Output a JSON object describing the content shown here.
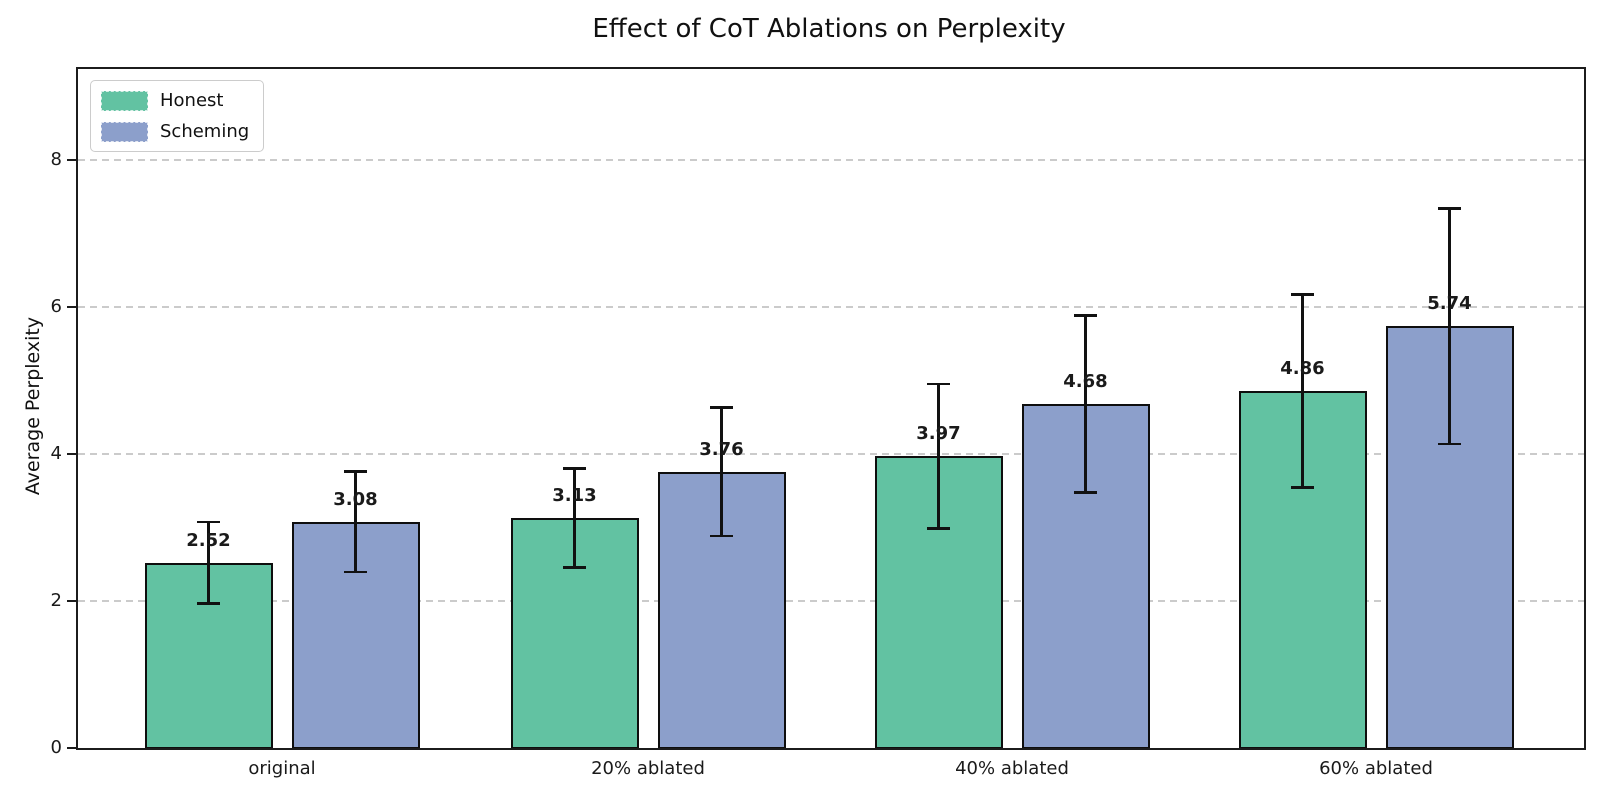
{
  "chart_data": {
    "type": "bar",
    "title": "Effect of CoT Ablations on Perplexity",
    "xlabel": "",
    "ylabel": "Average Perplexity",
    "categories": [
      "original",
      "20% ablated",
      "40% ablated",
      "60% ablated"
    ],
    "series": [
      {
        "name": "Honest",
        "color": "#62C2A2",
        "values": [
          2.52,
          3.13,
          3.97,
          4.86
        ],
        "errors": [
          0.57,
          0.69,
          1.0,
          1.33
        ],
        "labels": [
          "2.52",
          "3.13",
          "3.97",
          "4.86"
        ]
      },
      {
        "name": "Scheming",
        "color": "#8C9FCB",
        "values": [
          3.08,
          3.76,
          4.68,
          5.74
        ],
        "errors": [
          0.7,
          0.89,
          1.22,
          1.62
        ],
        "labels": [
          "3.08",
          "3.76",
          "4.68",
          "5.74"
        ]
      }
    ],
    "ylim": [
      0,
      9.24
    ],
    "yticks": [
      0,
      2,
      4,
      6,
      8
    ],
    "grid": "horizontal dashed lines at yticks",
    "legend_position": "upper-left",
    "error_bars": true,
    "bar_value_labels": true
  },
  "colors": {
    "honest_bar": "#62C2A2",
    "scheming_bar": "#8C9FCB",
    "bar_edge": "#0e0e0e",
    "grid_line": "#cbcbcb",
    "axis_spine": "#1c1c1c",
    "text": "#1a1a1a",
    "background": "#ffffff"
  }
}
